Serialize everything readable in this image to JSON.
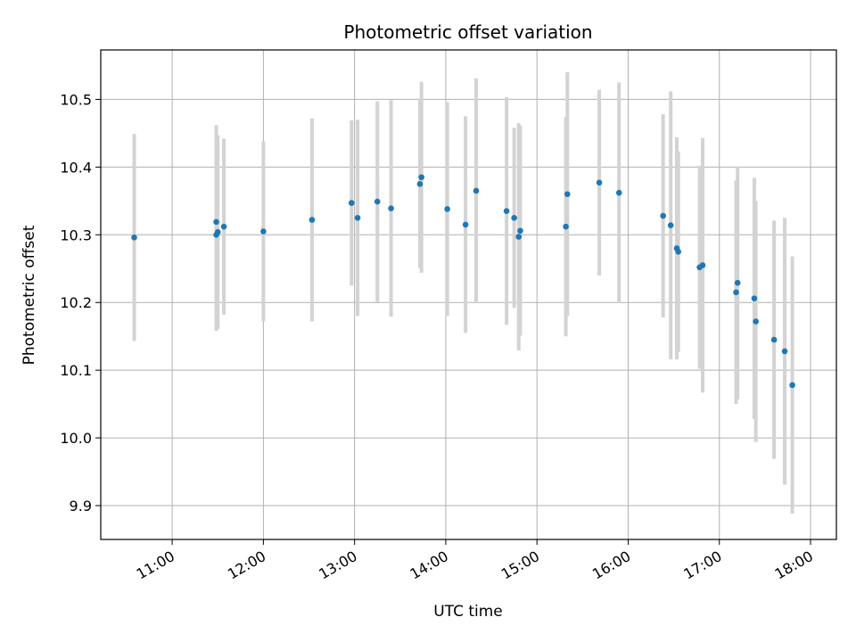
{
  "chart_data": {
    "type": "scatter",
    "title": "Photometric offset variation",
    "xlabel": "UTC time",
    "ylabel": "Photometric offset",
    "x_axis_type": "time",
    "xlim": [
      "10:13",
      "18:17"
    ],
    "ylim": [
      9.85,
      10.573
    ],
    "x_ticks": [
      "11:00",
      "12:00",
      "13:00",
      "14:00",
      "15:00",
      "16:00",
      "17:00",
      "18:00"
    ],
    "y_ticks": [
      9.9,
      10.0,
      10.1,
      10.2,
      10.3,
      10.4,
      10.5
    ],
    "grid": true,
    "marker_color": "#1f77b4",
    "errorbar_color": "#d3d3d3",
    "points": [
      {
        "t": "10:35",
        "y": 10.296,
        "err": 0.153
      },
      {
        "t": "11:29",
        "y": 10.3,
        "err": 0.142
      },
      {
        "t": "11:29",
        "y": 10.319,
        "err": 0.143
      },
      {
        "t": "11:30",
        "y": 10.304,
        "err": 0.143
      },
      {
        "t": "11:34",
        "y": 10.312,
        "err": 0.13
      },
      {
        "t": "12:00",
        "y": 10.305,
        "err": 0.133
      },
      {
        "t": "12:32",
        "y": 10.322,
        "err": 0.15
      },
      {
        "t": "12:58",
        "y": 10.347,
        "err": 0.122
      },
      {
        "t": "13:02",
        "y": 10.325,
        "err": 0.145
      },
      {
        "t": "13:15",
        "y": 10.349,
        "err": 0.148
      },
      {
        "t": "13:24",
        "y": 10.339,
        "err": 0.16
      },
      {
        "t": "13:43",
        "y": 10.375,
        "err": 0.124
      },
      {
        "t": "13:44",
        "y": 10.385,
        "err": 0.141
      },
      {
        "t": "14:01",
        "y": 10.338,
        "err": 0.158
      },
      {
        "t": "14:13",
        "y": 10.315,
        "err": 0.16
      },
      {
        "t": "14:20",
        "y": 10.365,
        "err": 0.166
      },
      {
        "t": "14:40",
        "y": 10.335,
        "err": 0.168
      },
      {
        "t": "14:45",
        "y": 10.325,
        "err": 0.133
      },
      {
        "t": "14:48",
        "y": 10.297,
        "err": 0.168
      },
      {
        "t": "14:49",
        "y": 10.306,
        "err": 0.155
      },
      {
        "t": "15:19",
        "y": 10.312,
        "err": 0.162
      },
      {
        "t": "15:20",
        "y": 10.36,
        "err": 0.18
      },
      {
        "t": "15:41",
        "y": 10.377,
        "err": 0.137
      },
      {
        "t": "15:54",
        "y": 10.362,
        "err": 0.163
      },
      {
        "t": "16:23",
        "y": 10.328,
        "err": 0.15
      },
      {
        "t": "16:28",
        "y": 10.314,
        "err": 0.198
      },
      {
        "t": "16:32",
        "y": 10.28,
        "err": 0.164
      },
      {
        "t": "16:33",
        "y": 10.275,
        "err": 0.148
      },
      {
        "t": "16:47",
        "y": 10.252,
        "err": 0.15
      },
      {
        "t": "16:49",
        "y": 10.255,
        "err": 0.188
      },
      {
        "t": "17:11",
        "y": 10.215,
        "err": 0.165
      },
      {
        "t": "17:12",
        "y": 10.229,
        "err": 0.172
      },
      {
        "t": "17:23",
        "y": 10.206,
        "err": 0.178
      },
      {
        "t": "17:24",
        "y": 10.172,
        "err": 0.178
      },
      {
        "t": "17:36",
        "y": 10.145,
        "err": 0.176
      },
      {
        "t": "17:43",
        "y": 10.128,
        "err": 0.197
      },
      {
        "t": "17:48",
        "y": 10.078,
        "err": 0.19
      }
    ]
  }
}
